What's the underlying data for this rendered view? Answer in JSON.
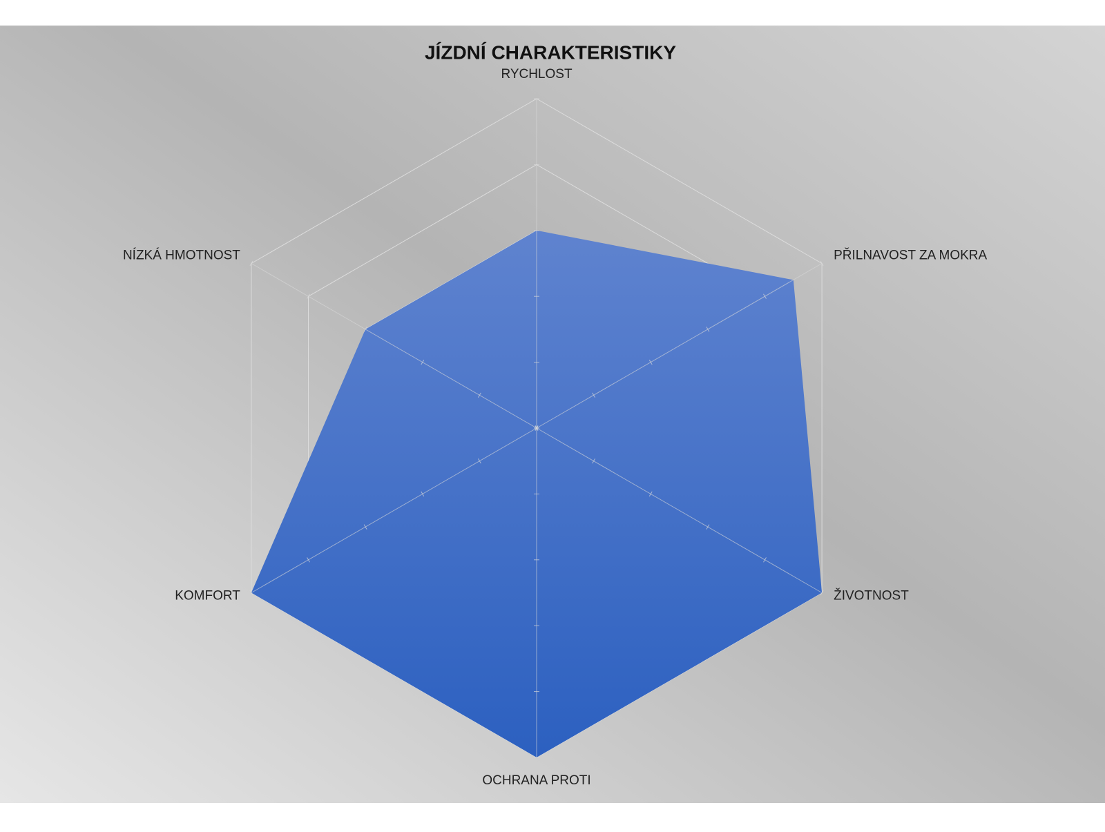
{
  "chart_data": {
    "type": "radar",
    "title": "JÍZDNÍ CHARAKTERISTIKY",
    "categories": [
      "RYCHLOST",
      "PŘILNAVOST ZA MOKRA",
      "ŽIVOTNOST",
      "OCHRANA PROTI",
      "KOMFORT",
      "NÍZKÁ HMOTNOST"
    ],
    "values": [
      3,
      4.5,
      5,
      5,
      5,
      3
    ],
    "color": "#4272cc",
    "ylim": [
      0,
      5
    ],
    "yticks": [
      0,
      1,
      2,
      3,
      4,
      5
    ],
    "grid": true
  }
}
